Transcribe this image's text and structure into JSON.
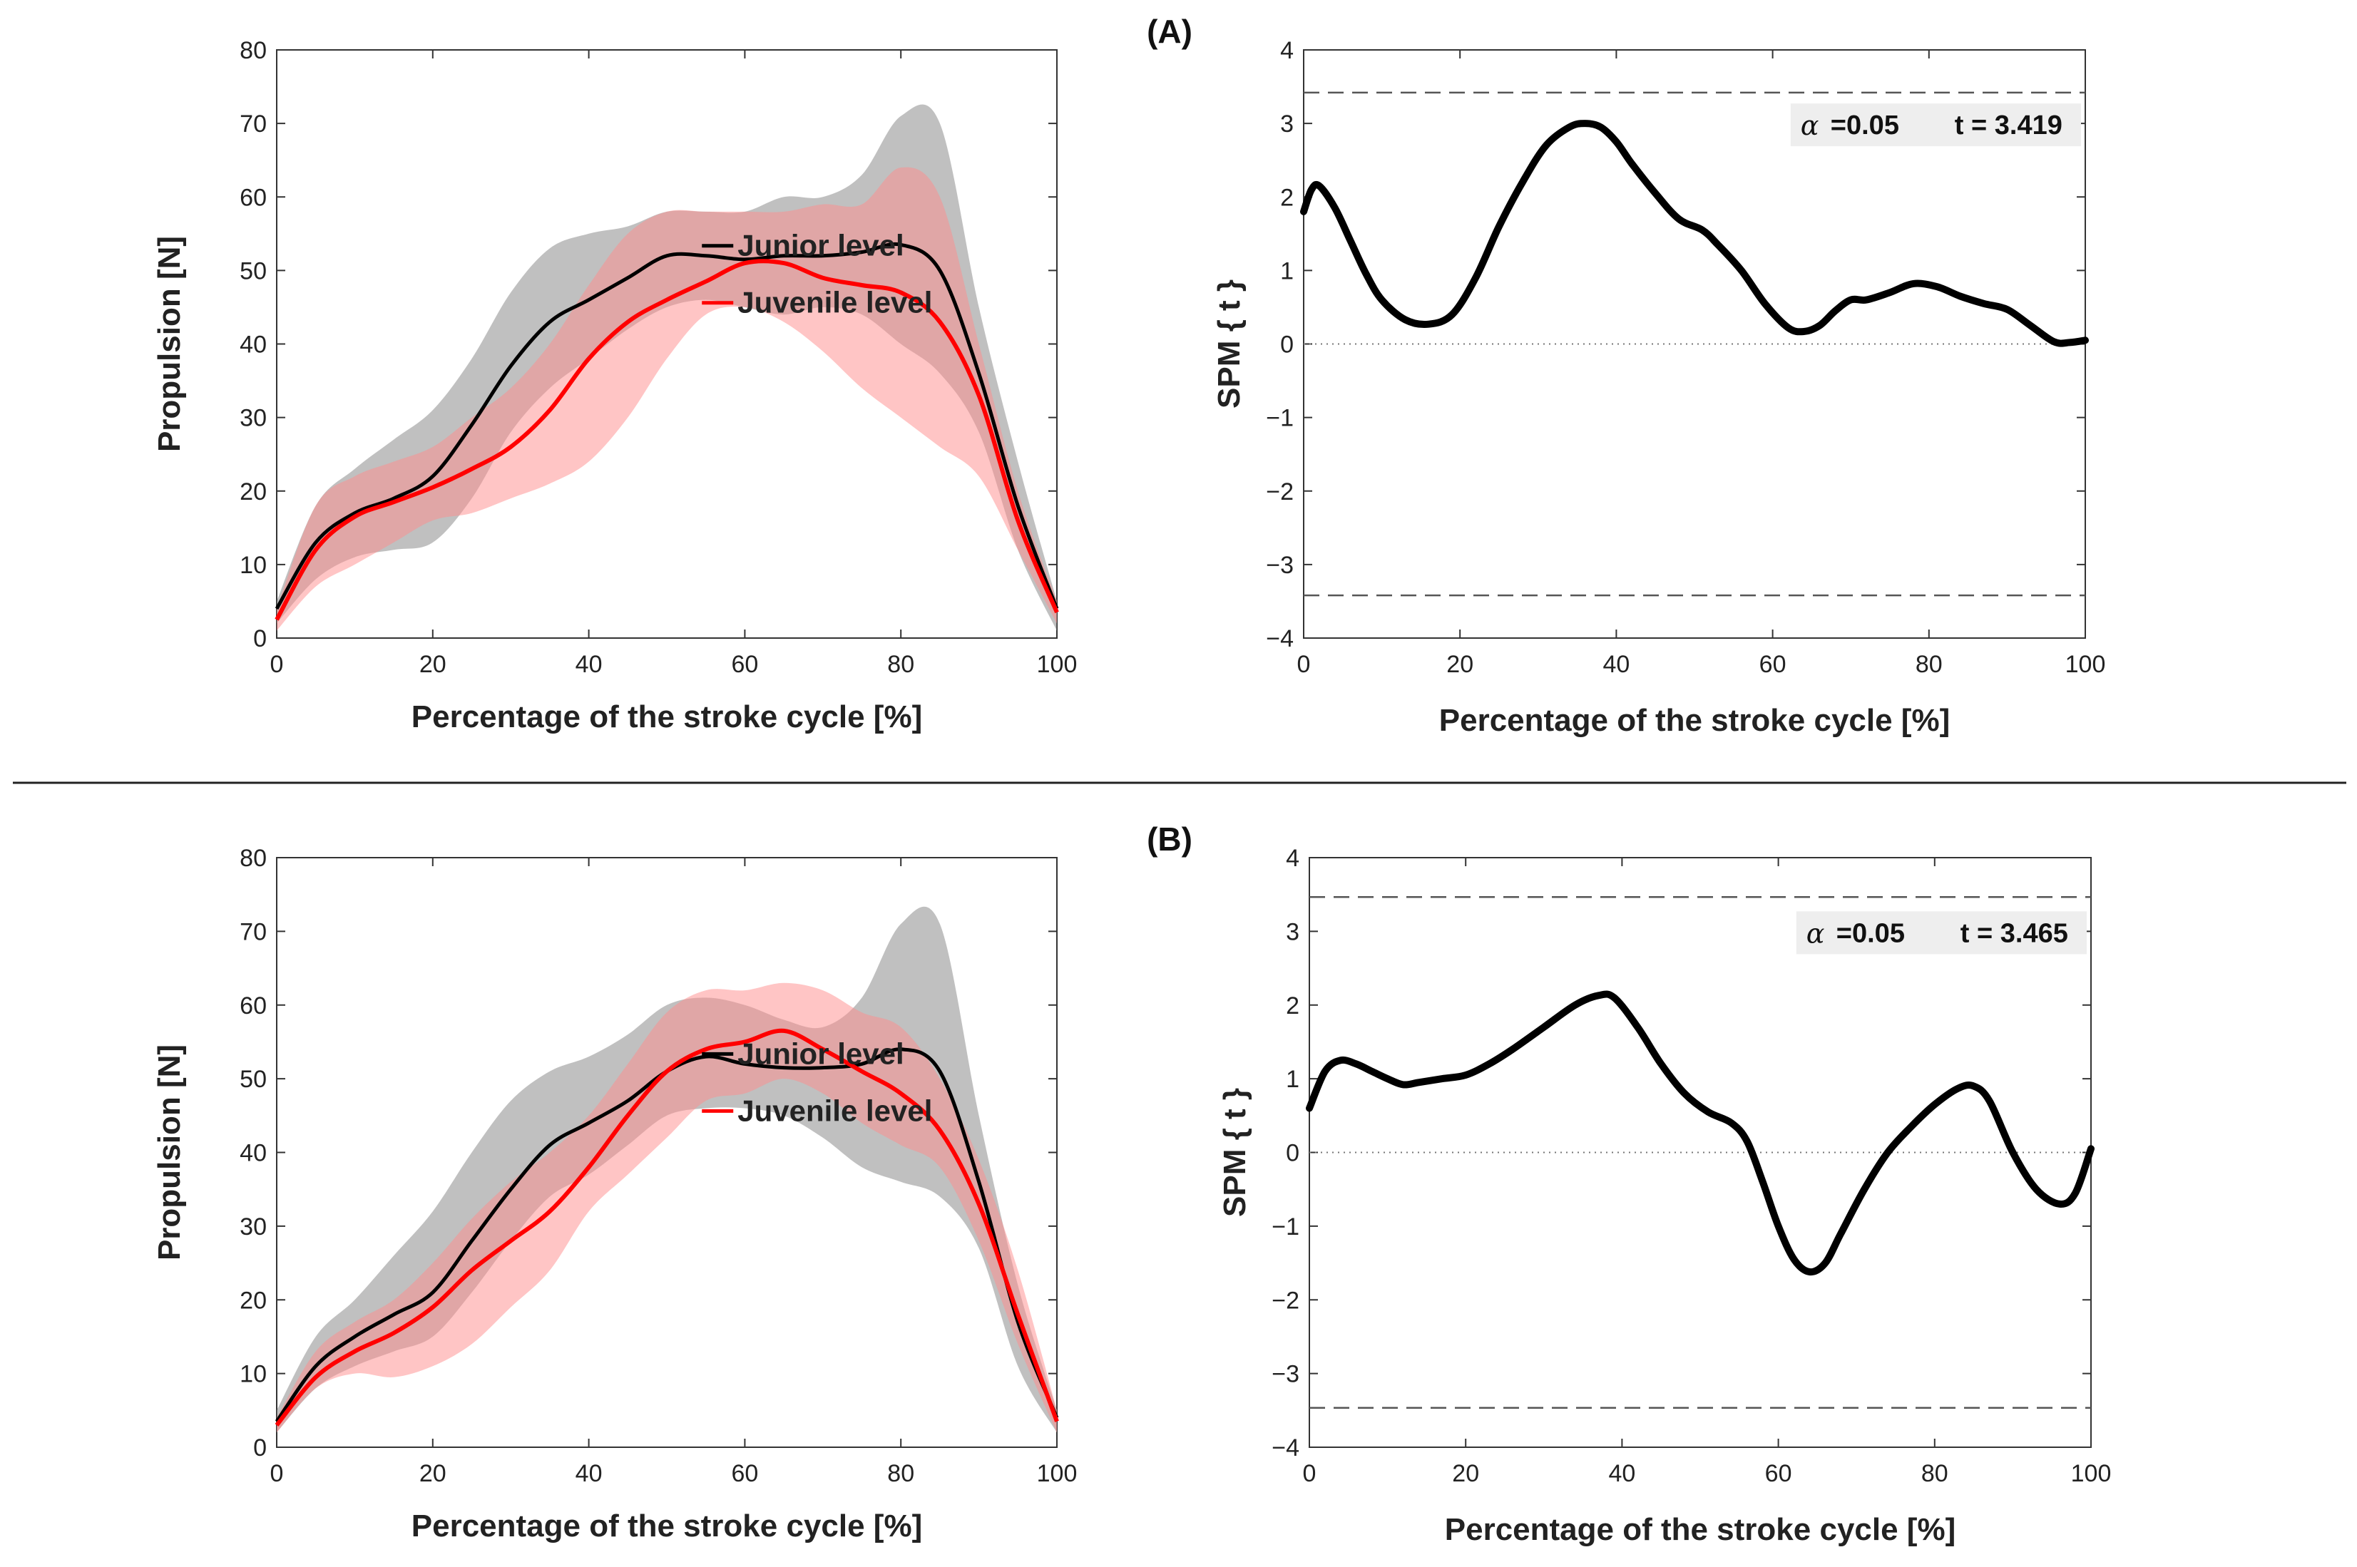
{
  "chart_data": [
    {
      "id": "A-propulsion",
      "panel": "(A)",
      "type": "line",
      "title": "",
      "xlabel": "Percentage of the stroke cycle [%]",
      "ylabel": "Propulsion [N]",
      "xlim": [
        0,
        100
      ],
      "ylim": [
        0,
        80
      ],
      "xticks": [
        "0",
        "20",
        "40",
        "60",
        "80",
        "100"
      ],
      "yticks": [
        "0",
        "10",
        "20",
        "30",
        "40",
        "50",
        "60",
        "70",
        "80"
      ],
      "legend_position": "center",
      "series": [
        {
          "name": "Junior level",
          "color": "#000000",
          "band_color": "#8c8c8c",
          "x": [
            0,
            5,
            10,
            15,
            20,
            25,
            30,
            35,
            40,
            45,
            50,
            55,
            60,
            65,
            70,
            75,
            80,
            85,
            90,
            95,
            100
          ],
          "mean": [
            4,
            13,
            17,
            19,
            22,
            29,
            37,
            43,
            46,
            49,
            52,
            52,
            51.5,
            52,
            52,
            52.5,
            53.5,
            50,
            36,
            18,
            4
          ],
          "upper": [
            5,
            18,
            23,
            27,
            31,
            38,
            47,
            53,
            55,
            56,
            58,
            58,
            58,
            60,
            60,
            63,
            71,
            70,
            45,
            24,
            5
          ],
          "lower": [
            2,
            8,
            11,
            12,
            13,
            19,
            28,
            34,
            38,
            42,
            45,
            46,
            45,
            44,
            45,
            44,
            40,
            36,
            28,
            12,
            1
          ]
        },
        {
          "name": "Juvenile level",
          "color": "#ff0000",
          "band_color": "#ff8c8c",
          "x": [
            0,
            5,
            10,
            15,
            20,
            25,
            30,
            35,
            40,
            45,
            50,
            55,
            60,
            65,
            70,
            75,
            80,
            85,
            90,
            95,
            100
          ],
          "mean": [
            2.5,
            12,
            16.5,
            18.5,
            20.5,
            23,
            26,
            31,
            38,
            43,
            46,
            48.5,
            51,
            51,
            49,
            48,
            47,
            43,
            33,
            16,
            3.5
          ],
          "upper": [
            4,
            18,
            22,
            24,
            26,
            30,
            34,
            40,
            48,
            55,
            58,
            58,
            58,
            58,
            59,
            59,
            64,
            60,
            40,
            20,
            5
          ],
          "lower": [
            1,
            7,
            10,
            13,
            16,
            17,
            19,
            21,
            24,
            30,
            38,
            44,
            45,
            43,
            39,
            34,
            30,
            26,
            22,
            12,
            2
          ]
        }
      ]
    },
    {
      "id": "A-spm",
      "panel": "(A)",
      "type": "line",
      "title": "",
      "xlabel": "Percentage of the stroke cycle [%]",
      "ylabel": "SPM { t }",
      "xlim": [
        0,
        100
      ],
      "ylim": [
        -4,
        4
      ],
      "xticks": [
        "0",
        "20",
        "40",
        "60",
        "80",
        "100"
      ],
      "yticks": [
        "-4",
        "-3",
        "-2",
        "-1",
        "0",
        "1",
        "2",
        "3",
        "4"
      ],
      "threshold": 3.419,
      "annotation": {
        "alpha_symbol": "α",
        "alpha_text": "=0.05",
        "t_text": "t  = 3.419"
      },
      "series": [
        {
          "name": "SPM{t}",
          "color": "#000000",
          "x": [
            0,
            1,
            2,
            4,
            6,
            8,
            10,
            13,
            16,
            19,
            22,
            25,
            28,
            31,
            34,
            36,
            38,
            40,
            42,
            45,
            48,
            51,
            53,
            56,
            59,
            62,
            64,
            66,
            68,
            70,
            72,
            75,
            78,
            81,
            84,
            87,
            90,
            93,
            96,
            98,
            100
          ],
          "y": [
            1.8,
            2.1,
            2.15,
            1.85,
            1.4,
            0.95,
            0.6,
            0.33,
            0.27,
            0.4,
            0.9,
            1.6,
            2.2,
            2.7,
            2.95,
            3.0,
            2.95,
            2.75,
            2.45,
            2.05,
            1.7,
            1.55,
            1.35,
            1.0,
            0.55,
            0.22,
            0.17,
            0.25,
            0.45,
            0.6,
            0.6,
            0.7,
            0.82,
            0.78,
            0.65,
            0.55,
            0.47,
            0.25,
            0.03,
            0.02,
            0.05
          ]
        }
      ]
    },
    {
      "id": "B-propulsion",
      "panel": "(B)",
      "type": "line",
      "title": "",
      "xlabel": "Percentage of the stroke cycle [%]",
      "ylabel": "Propulsion [N]",
      "xlim": [
        0,
        100
      ],
      "ylim": [
        0,
        80
      ],
      "xticks": [
        "0",
        "20",
        "40",
        "60",
        "80",
        "100"
      ],
      "yticks": [
        "0",
        "10",
        "20",
        "30",
        "40",
        "50",
        "60",
        "70",
        "80"
      ],
      "legend_position": "center",
      "series": [
        {
          "name": "Junior level",
          "color": "#000000",
          "band_color": "#8c8c8c",
          "x": [
            0,
            5,
            10,
            15,
            20,
            25,
            30,
            35,
            40,
            45,
            50,
            55,
            60,
            65,
            70,
            75,
            80,
            85,
            90,
            95,
            100
          ],
          "mean": [
            3.5,
            11,
            15,
            18,
            21,
            28,
            35,
            41,
            44,
            47,
            51,
            53,
            52,
            51.5,
            51.5,
            52,
            54,
            51,
            36,
            17,
            4
          ],
          "upper": [
            5,
            15,
            20,
            26,
            32,
            40,
            47,
            51,
            53,
            56,
            60,
            61,
            60,
            58,
            57,
            61,
            71,
            71,
            45,
            22,
            5
          ],
          "lower": [
            2,
            8,
            11,
            13,
            15,
            21,
            28,
            34,
            37,
            41,
            45,
            46,
            46,
            45,
            42,
            38,
            36,
            34,
            27,
            11,
            2
          ]
        },
        {
          "name": "Juvenile level",
          "color": "#ff0000",
          "band_color": "#ff8c8c",
          "x": [
            0,
            5,
            10,
            15,
            20,
            25,
            30,
            35,
            40,
            45,
            50,
            55,
            60,
            65,
            70,
            75,
            80,
            85,
            90,
            95,
            100
          ],
          "mean": [
            3,
            9.5,
            13,
            15.5,
            19,
            24,
            28,
            32,
            38,
            45,
            51,
            54,
            55,
            56.5,
            54,
            51,
            48,
            43,
            33,
            18,
            3.5
          ],
          "upper": [
            4,
            13,
            17,
            20,
            25,
            31,
            36,
            40,
            45,
            52,
            59,
            62,
            62,
            63,
            62,
            59,
            57,
            50,
            39,
            24,
            5
          ],
          "lower": [
            2,
            8,
            10,
            9.5,
            11,
            14,
            19,
            24,
            32,
            37,
            42,
            47,
            48,
            50,
            48,
            44,
            41,
            38,
            28,
            14,
            2
          ]
        }
      ]
    },
    {
      "id": "B-spm",
      "panel": "(B)",
      "type": "line",
      "title": "",
      "xlabel": "Percentage of the stroke cycle [%]",
      "ylabel": "SPM { t }",
      "xlim": [
        0,
        100
      ],
      "ylim": [
        -4,
        4
      ],
      "xticks": [
        "0",
        "20",
        "40",
        "60",
        "80",
        "100"
      ],
      "yticks": [
        "-4",
        "-3",
        "-2",
        "-1",
        "0",
        "1",
        "2",
        "3",
        "4"
      ],
      "threshold": 3.465,
      "annotation": {
        "alpha_symbol": "α",
        "alpha_text": "=0.05",
        "t_text": "t  = 3.465"
      },
      "series": [
        {
          "name": "SPM{t}",
          "color": "#000000",
          "x": [
            0,
            2,
            4,
            6,
            8,
            10,
            12,
            14,
            17,
            20,
            23,
            26,
            30,
            34,
            37,
            39,
            42,
            45,
            48,
            51,
            54,
            56,
            58,
            60,
            62,
            64,
            66,
            68,
            71,
            74,
            77,
            80,
            83,
            85,
            87,
            90,
            93,
            96,
            98,
            100
          ],
          "y": [
            0.6,
            1.1,
            1.25,
            1.2,
            1.1,
            1.0,
            0.92,
            0.95,
            1.0,
            1.05,
            1.2,
            1.4,
            1.7,
            2.0,
            2.13,
            2.1,
            1.7,
            1.2,
            0.8,
            0.55,
            0.4,
            0.15,
            -0.4,
            -1.0,
            -1.45,
            -1.62,
            -1.5,
            -1.1,
            -0.5,
            0.0,
            0.35,
            0.65,
            0.87,
            0.9,
            0.7,
            0.0,
            -0.5,
            -0.7,
            -0.55,
            0.05
          ]
        }
      ]
    }
  ]
}
